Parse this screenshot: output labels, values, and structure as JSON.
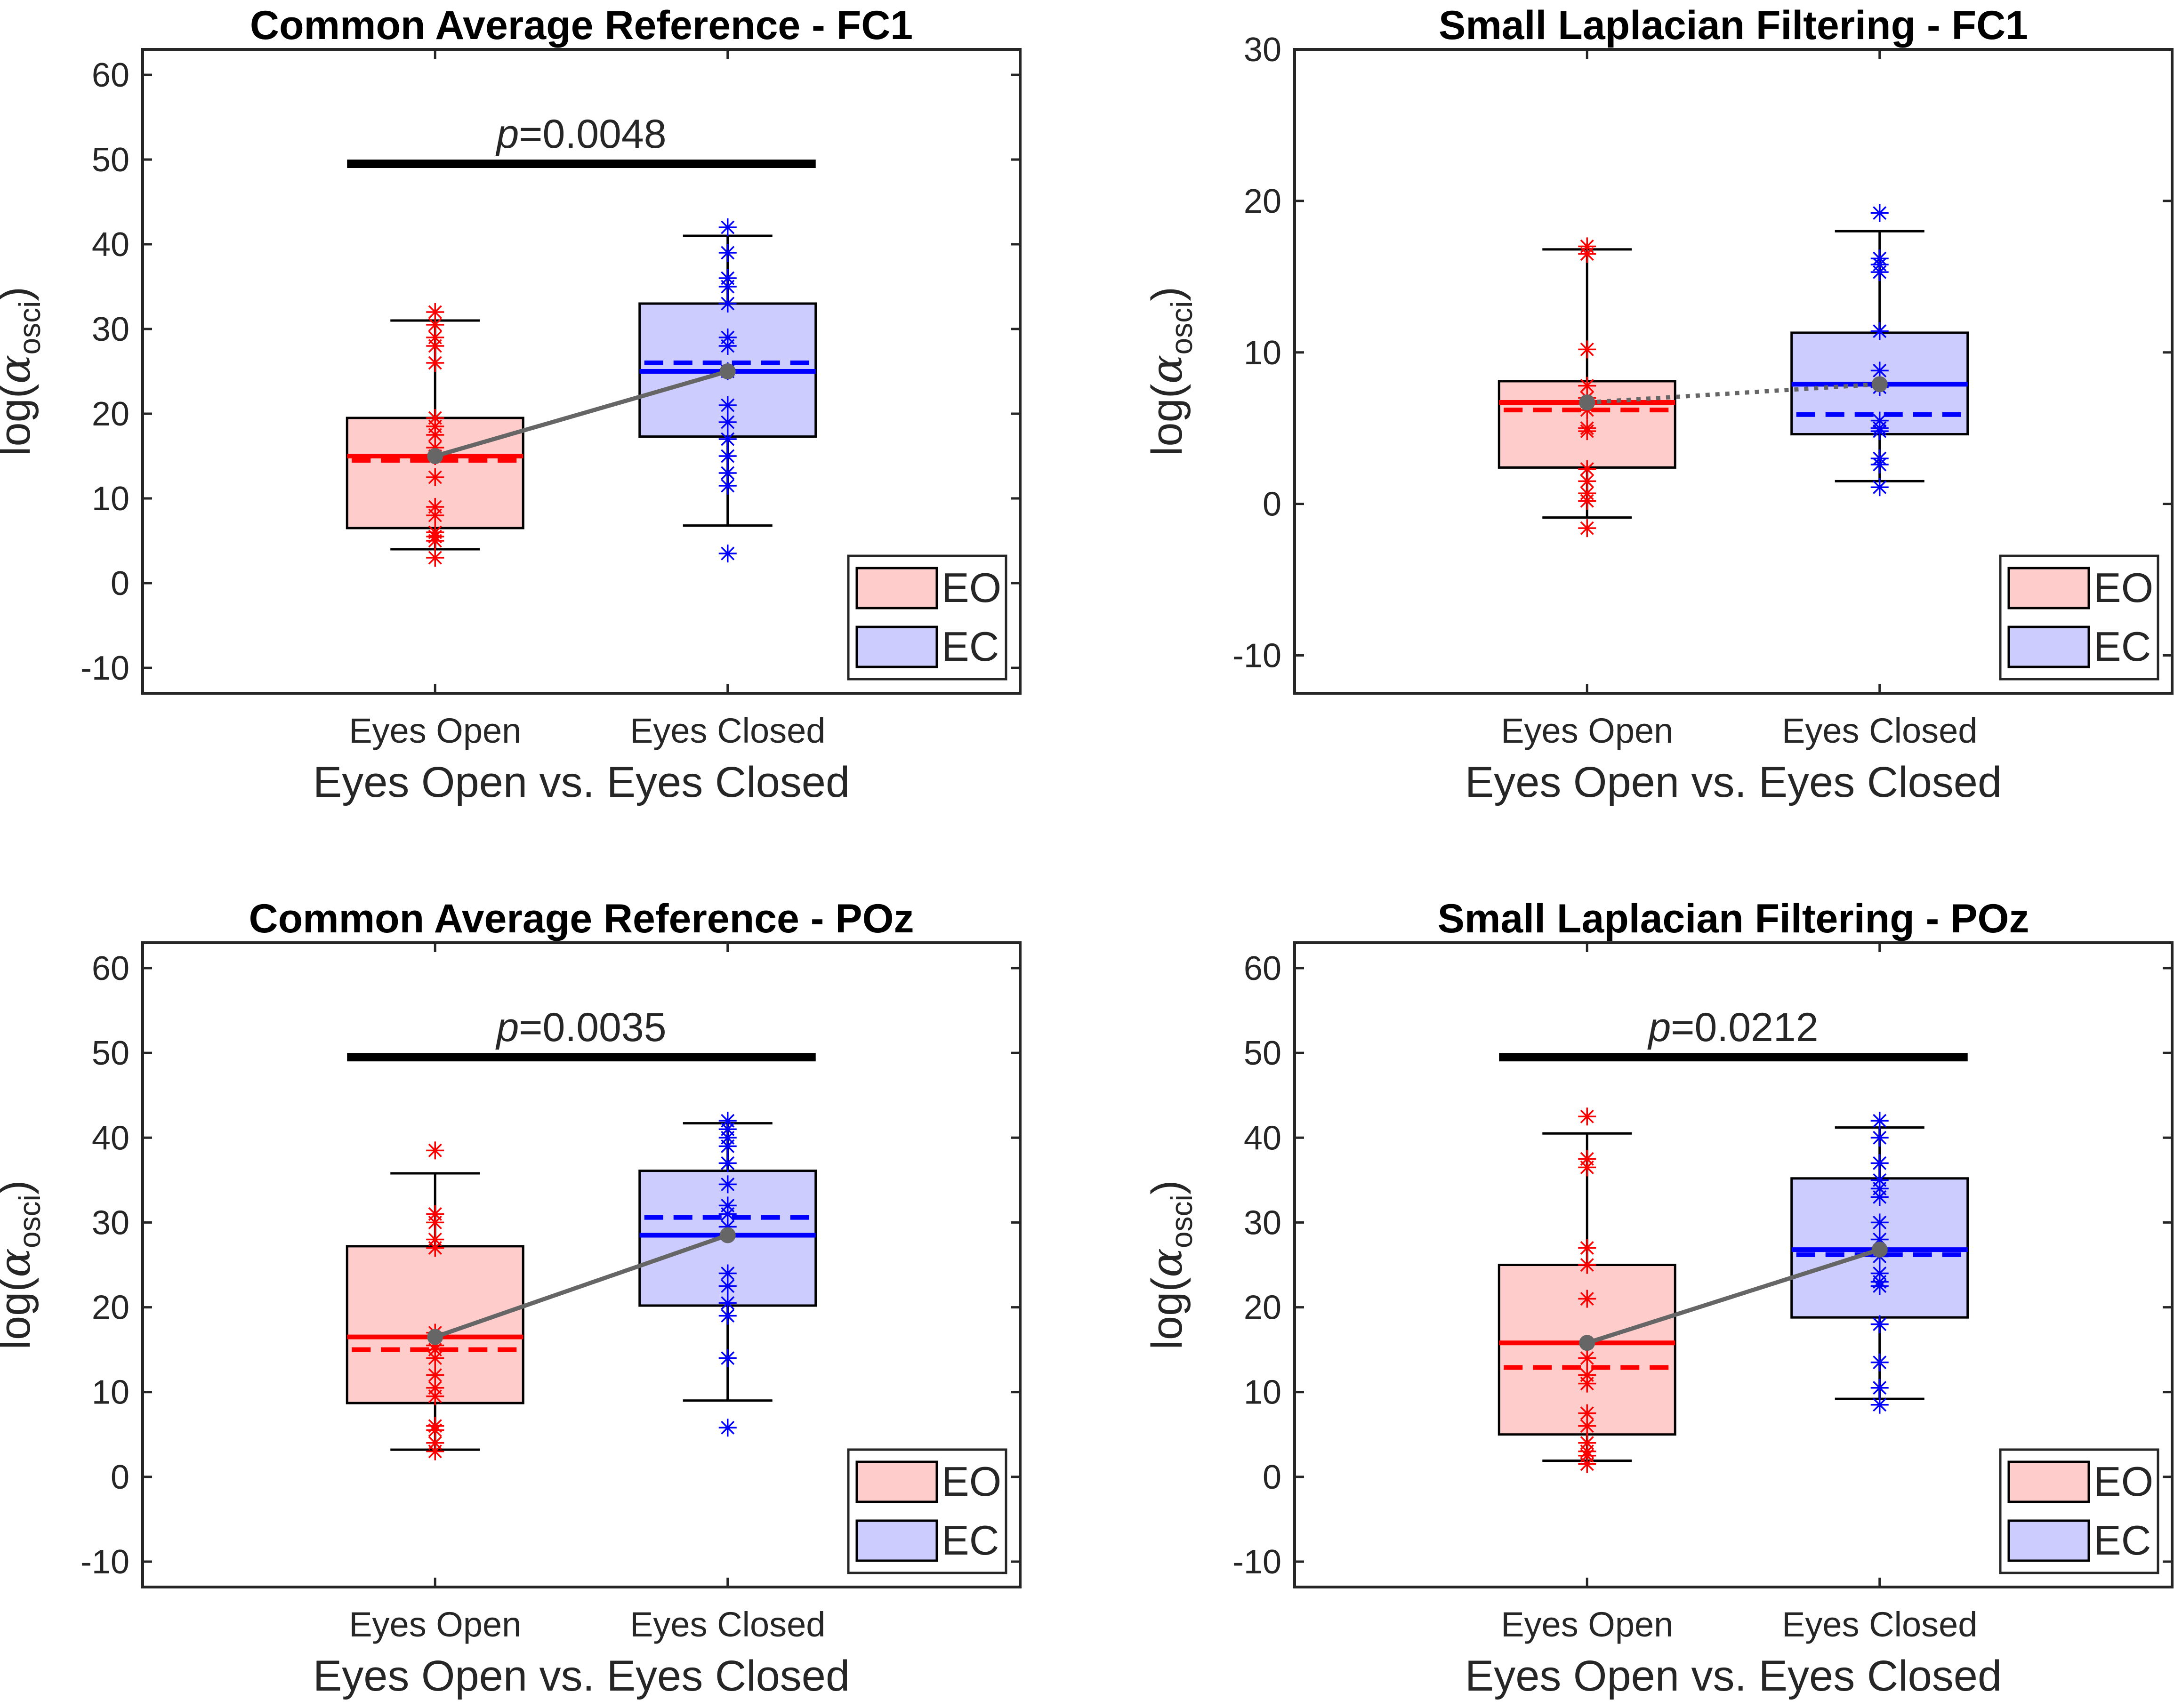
{
  "chart_data": [
    {
      "type": "box",
      "title": "Common Average Reference - FC1",
      "xlabel": "Eyes Open vs. Eyes Closed",
      "ylabel": "log(αosci)",
      "ylabel_main": "log(",
      "ylabel_symbol": "α",
      "ylabel_sub": "osci",
      "ylabel_close": ")",
      "categories": [
        "Eyes Open",
        "Eyes Closed"
      ],
      "ylim": [
        -13,
        63
      ],
      "yticks": [
        -10,
        0,
        10,
        20,
        30,
        40,
        50,
        60
      ],
      "connector_style": "solid",
      "significance": {
        "p_prefix": "p",
        "p_value": "=0.0048",
        "y": 49.5
      },
      "legend": {
        "position": "bottom-right",
        "entries": [
          "EO",
          "EC"
        ]
      },
      "series": [
        {
          "legend": "EO",
          "color": "#ff0000",
          "fill": "#ffcccc",
          "q1": 6.5,
          "q3": 19.5,
          "median": 15.0,
          "mean": 14.5,
          "whisker_low": 4.0,
          "whisker_high": 31.0,
          "points": [
            32.0,
            30.5,
            29.0,
            28.0,
            26.0,
            19.5,
            18.5,
            17.5,
            16.0,
            15.0,
            12.5,
            9.0,
            8.0,
            6.0,
            5.5,
            5.0,
            3.0
          ]
        },
        {
          "legend": "EC",
          "color": "#0000ff",
          "fill": "#ccccff",
          "q1": 17.3,
          "q3": 33.0,
          "median": 25.0,
          "mean": 26.0,
          "whisker_low": 6.8,
          "whisker_high": 41.0,
          "points": [
            42.0,
            39.0,
            36.0,
            35.0,
            33.0,
            29.0,
            28.0,
            25.0,
            21.0,
            19.0,
            17.0,
            15.0,
            13.0,
            11.5,
            3.5
          ]
        }
      ]
    },
    {
      "type": "box",
      "title": "Small Laplacian Filtering - FC1",
      "xlabel": "Eyes Open vs. Eyes Closed",
      "ylabel": "log(αosci)",
      "ylabel_main": "log(",
      "ylabel_symbol": "α",
      "ylabel_sub": "osci",
      "ylabel_close": ")",
      "categories": [
        "Eyes Open",
        "Eyes Closed"
      ],
      "ylim": [
        -12.5,
        30
      ],
      "yticks": [
        -10,
        0,
        10,
        20,
        30
      ],
      "connector_style": "dotted",
      "legend": {
        "position": "bottom-right",
        "entries": [
          "EO",
          "EC"
        ]
      },
      "series": [
        {
          "legend": "EO",
          "color": "#ff0000",
          "fill": "#ffcccc",
          "q1": 2.4,
          "q3": 8.1,
          "median": 6.7,
          "mean": 6.2,
          "whisker_low": -0.9,
          "whisker_high": 16.8,
          "points": [
            17.0,
            16.5,
            10.2,
            7.8,
            7.0,
            6.2,
            5.0,
            4.8,
            2.3,
            1.5,
            0.7,
            0.2,
            -1.6
          ]
        },
        {
          "legend": "EC",
          "color": "#0000ff",
          "fill": "#ccccff",
          "q1": 4.6,
          "q3": 11.3,
          "median": 7.9,
          "mean": 5.9,
          "whisker_low": 1.5,
          "whisker_high": 18.0,
          "points": [
            19.2,
            16.2,
            15.8,
            15.3,
            11.4,
            8.8,
            7.7,
            5.5,
            5.0,
            4.8,
            3.0,
            2.6,
            1.1
          ]
        }
      ]
    },
    {
      "type": "box",
      "title": "Common Average Reference - POz",
      "xlabel": "Eyes Open vs. Eyes Closed",
      "ylabel": "log(αosci)",
      "ylabel_main": "log(",
      "ylabel_symbol": "α",
      "ylabel_sub": "osci",
      "ylabel_close": ")",
      "categories": [
        "Eyes Open",
        "Eyes Closed"
      ],
      "ylim": [
        -13,
        63
      ],
      "yticks": [
        -10,
        0,
        10,
        20,
        30,
        40,
        50,
        60
      ],
      "connector_style": "solid",
      "significance": {
        "p_prefix": "p",
        "p_value": "=0.0035",
        "y": 49.5
      },
      "legend": {
        "position": "bottom-right",
        "entries": [
          "EO",
          "EC"
        ]
      },
      "series": [
        {
          "legend": "EO",
          "color": "#ff0000",
          "fill": "#ffcccc",
          "q1": 8.7,
          "q3": 27.2,
          "median": 16.5,
          "mean": 15.0,
          "whisker_low": 3.2,
          "whisker_high": 35.8,
          "points": [
            38.5,
            31.0,
            30.0,
            28.0,
            27.0,
            17.0,
            15.5,
            15.0,
            14.0,
            12.0,
            10.5,
            9.5,
            6.0,
            5.5,
            4.0,
            3.0
          ]
        },
        {
          "legend": "EC",
          "color": "#0000ff",
          "fill": "#ccccff",
          "q1": 20.2,
          "q3": 36.1,
          "median": 28.5,
          "mean": 30.6,
          "whisker_low": 9.0,
          "whisker_high": 41.7,
          "points": [
            42.0,
            41.0,
            40.0,
            39.0,
            37.0,
            34.5,
            32.0,
            31.0,
            29.5,
            24.0,
            22.5,
            20.5,
            19.0,
            14.0,
            5.8
          ]
        }
      ]
    },
    {
      "type": "box",
      "title": "Small Laplacian Filtering - POz",
      "xlabel": "Eyes Open vs. Eyes Closed",
      "ylabel": "log(αosci)",
      "ylabel_main": "log(",
      "ylabel_symbol": "α",
      "ylabel_sub": "osci",
      "ylabel_close": ")",
      "categories": [
        "Eyes Open",
        "Eyes Closed"
      ],
      "ylim": [
        -13,
        63
      ],
      "yticks": [
        -10,
        0,
        10,
        20,
        30,
        40,
        50,
        60
      ],
      "connector_style": "solid",
      "significance": {
        "p_prefix": "p",
        "p_value": "=0.0212",
        "y": 49.5
      },
      "legend": {
        "position": "bottom-right",
        "entries": [
          "EO",
          "EC"
        ]
      },
      "series": [
        {
          "legend": "EO",
          "color": "#ff0000",
          "fill": "#ffcccc",
          "q1": 5.0,
          "q3": 25.0,
          "median": 15.8,
          "mean": 12.9,
          "whisker_low": 1.9,
          "whisker_high": 40.5,
          "points": [
            42.5,
            37.5,
            36.5,
            27.0,
            25.0,
            21.0,
            14.0,
            12.0,
            11.0,
            7.5,
            6.0,
            4.0,
            3.0,
            2.5,
            1.5
          ]
        },
        {
          "legend": "EC",
          "color": "#0000ff",
          "fill": "#ccccff",
          "q1": 18.8,
          "q3": 35.2,
          "median": 26.8,
          "mean": 26.2,
          "whisker_low": 9.2,
          "whisker_high": 41.2,
          "points": [
            42.0,
            40.0,
            37.0,
            35.0,
            34.0,
            33.0,
            30.0,
            28.0,
            26.0,
            24.0,
            23.0,
            22.5,
            18.0,
            13.5,
            10.5,
            8.5
          ]
        }
      ]
    }
  ]
}
